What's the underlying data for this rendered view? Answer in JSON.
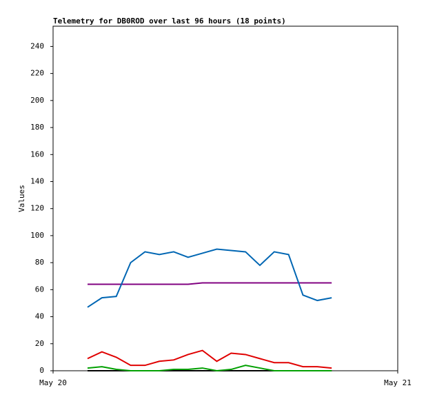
{
  "chart_data": {
    "type": "line",
    "title": "Telemetry for DB0ROD over last 96 hours (18 points)",
    "y_label": "Values",
    "xlim": [
      0,
      24
    ],
    "xticks": [
      {
        "value": 0,
        "label": "May 20"
      },
      {
        "value": 24,
        "label": "May 21"
      }
    ],
    "ylim": [
      0,
      255
    ],
    "yticks": [
      0,
      20,
      40,
      60,
      80,
      100,
      120,
      140,
      160,
      180,
      200,
      220,
      240
    ],
    "x": [
      2.4,
      3.4,
      4.4,
      5.4,
      6.4,
      7.4,
      8.4,
      9.4,
      10.4,
      11.4,
      12.4,
      13.4,
      14.4,
      15.4,
      16.4,
      17.4,
      18.4,
      19.4
    ],
    "series": [
      {
        "color": "#000000",
        "values": [
          0,
          0,
          0,
          0,
          0,
          0,
          0,
          0,
          0,
          0,
          0,
          0,
          0,
          0,
          0,
          0,
          0,
          0
        ]
      },
      {
        "color": "#00a000",
        "values": [
          2,
          3,
          1,
          0,
          0,
          0,
          1,
          1,
          2,
          0,
          1,
          4,
          2,
          0,
          0,
          0,
          0,
          0
        ]
      },
      {
        "color": "#e00000",
        "values": [
          9,
          14,
          10,
          4,
          4,
          7,
          8,
          12,
          15,
          7,
          13,
          12,
          9,
          6,
          6,
          3,
          3,
          2
        ]
      },
      {
        "color": "#800080",
        "values": [
          64,
          64,
          64,
          64,
          64,
          64,
          64,
          64,
          65,
          65,
          65,
          65,
          65,
          65,
          65,
          65,
          65,
          65
        ]
      },
      {
        "color": "#0066b3",
        "values": [
          47,
          54,
          55,
          80,
          88,
          86,
          88,
          84,
          87,
          90,
          89,
          88,
          78,
          88,
          86,
          56,
          52,
          54
        ]
      }
    ]
  }
}
